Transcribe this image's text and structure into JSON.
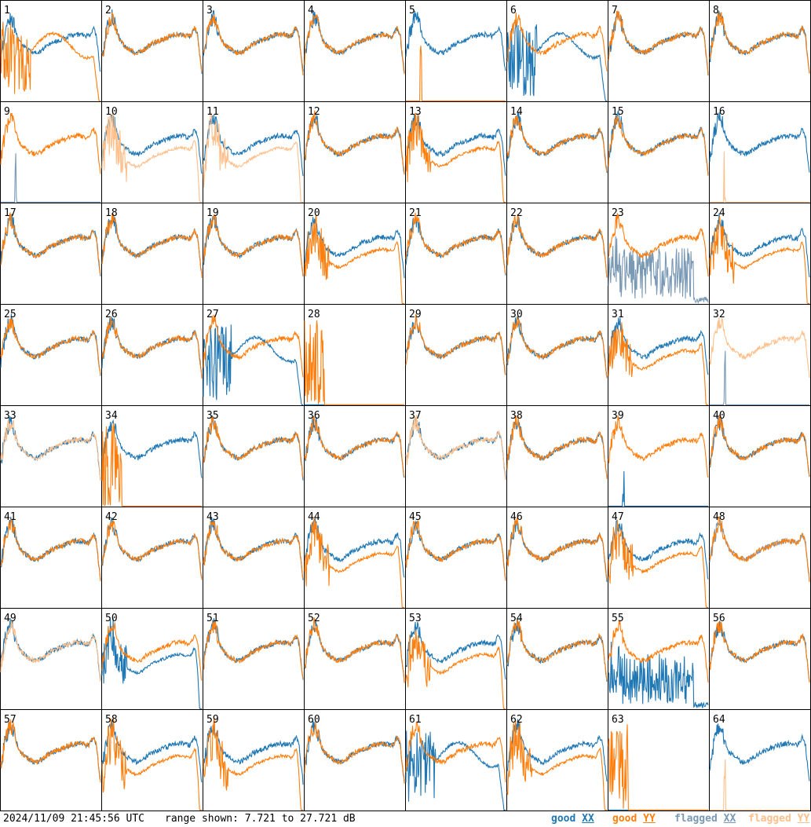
{
  "timestamp": "2024/11/09 21:45:56 UTC",
  "range_text": "range shown: 7.721 to 27.721 dB",
  "legend": [
    {
      "word": "good",
      "pol": "XX",
      "color": "#1f77b4"
    },
    {
      "word": "good",
      "pol": "YY",
      "color": "#ff7f0e"
    },
    {
      "word": "flagged",
      "pol": "XX",
      "color": "#7a99b5"
    },
    {
      "word": "flagged",
      "pol": "YY",
      "color": "#ffbf8a"
    }
  ],
  "colors": {
    "good_xx": "#1f77b4",
    "good_yy": "#ff7f0e",
    "flagged_xx": "#7a99b5",
    "flagged_yy": "#ffbf8a"
  },
  "chart_data": {
    "type": "line",
    "layout": "8x8 small multiples",
    "ylim": [
      7.721,
      27.721
    ],
    "yunit": "dB",
    "series_names": [
      "good XX",
      "good YY",
      "flagged XX",
      "flagged YY"
    ],
    "panels": [
      {
        "id": "1",
        "xx": "nominal",
        "yy": "low_noisy_start",
        "flagged": []
      },
      {
        "id": "2",
        "xx": "nominal",
        "yy": "nominal",
        "flagged": []
      },
      {
        "id": "3",
        "xx": "nominal",
        "yy": "nominal",
        "flagged": []
      },
      {
        "id": "4",
        "xx": "nominal",
        "yy": "nominal",
        "flagged": []
      },
      {
        "id": "5",
        "xx": "nominal",
        "yy": "dead_spike",
        "flagged": []
      },
      {
        "id": "6",
        "xx": "low_noisy_start",
        "yy": "nominal",
        "flagged": []
      },
      {
        "id": "7",
        "xx": "nominal",
        "yy": "nominal",
        "flagged": []
      },
      {
        "id": "8",
        "xx": "nominal",
        "yy": "nominal",
        "flagged": []
      },
      {
        "id": "9",
        "xx": "dead_spike",
        "yy": "nominal",
        "flagged": [
          "xx"
        ]
      },
      {
        "id": "10",
        "xx": "nominal",
        "yy": "low",
        "flagged": [
          "yy"
        ]
      },
      {
        "id": "11",
        "xx": "nominal",
        "yy": "low",
        "flagged": [
          "yy"
        ]
      },
      {
        "id": "12",
        "xx": "nominal",
        "yy": "nominal",
        "flagged": []
      },
      {
        "id": "13",
        "xx": "nominal",
        "yy": "low",
        "flagged": []
      },
      {
        "id": "14",
        "xx": "nominal",
        "yy": "nominal",
        "flagged": []
      },
      {
        "id": "15",
        "xx": "nominal",
        "yy": "nominal",
        "flagged": []
      },
      {
        "id": "16",
        "xx": "nominal",
        "yy": "dead_spike",
        "flagged": [
          "yy"
        ]
      },
      {
        "id": "17",
        "xx": "nominal",
        "yy": "nominal",
        "flagged": []
      },
      {
        "id": "18",
        "xx": "nominal",
        "yy": "nominal",
        "flagged": []
      },
      {
        "id": "19",
        "xx": "nominal",
        "yy": "nominal",
        "flagged": []
      },
      {
        "id": "20",
        "xx": "nominal",
        "yy": "low",
        "flagged": []
      },
      {
        "id": "21",
        "xx": "nominal",
        "yy": "nominal",
        "flagged": []
      },
      {
        "id": "22",
        "xx": "nominal",
        "yy": "nominal",
        "flagged": []
      },
      {
        "id": "23",
        "xx": "garbage",
        "yy": "nominal",
        "flagged": [
          "xx"
        ]
      },
      {
        "id": "24",
        "xx": "nominal",
        "yy": "low",
        "flagged": []
      },
      {
        "id": "25",
        "xx": "nominal",
        "yy": "nominal",
        "flagged": []
      },
      {
        "id": "26",
        "xx": "nominal",
        "yy": "nominal",
        "flagged": []
      },
      {
        "id": "27",
        "xx": "low_noisy_start",
        "yy": "nominal",
        "flagged": []
      },
      {
        "id": "28",
        "xx": "dead",
        "yy": "dead_spiky_start",
        "flagged": []
      },
      {
        "id": "29",
        "xx": "nominal",
        "yy": "nominal",
        "flagged": []
      },
      {
        "id": "30",
        "xx": "nominal",
        "yy": "nominal",
        "flagged": []
      },
      {
        "id": "31",
        "xx": "nominal",
        "yy": "low",
        "flagged": []
      },
      {
        "id": "32",
        "xx": "dead_spike",
        "yy": "nominal",
        "flagged": [
          "xx",
          "yy"
        ]
      },
      {
        "id": "33",
        "xx": "nominal",
        "yy": "nominal",
        "flagged": [
          "yy"
        ]
      },
      {
        "id": "34",
        "xx": "nominal",
        "yy": "dead_spiky_start",
        "flagged": []
      },
      {
        "id": "35",
        "xx": "nominal",
        "yy": "nominal",
        "flagged": []
      },
      {
        "id": "36",
        "xx": "nominal",
        "yy": "nominal",
        "flagged": []
      },
      {
        "id": "37",
        "xx": "nominal",
        "yy": "nominal",
        "flagged": [
          "yy"
        ]
      },
      {
        "id": "38",
        "xx": "nominal",
        "yy": "nominal",
        "flagged": []
      },
      {
        "id": "39",
        "xx": "dead_spike",
        "yy": "nominal",
        "flagged": []
      },
      {
        "id": "40",
        "xx": "nominal",
        "yy": "nominal",
        "flagged": []
      },
      {
        "id": "41",
        "xx": "nominal",
        "yy": "nominal",
        "flagged": []
      },
      {
        "id": "42",
        "xx": "nominal",
        "yy": "nominal",
        "flagged": []
      },
      {
        "id": "43",
        "xx": "nominal",
        "yy": "nominal",
        "flagged": []
      },
      {
        "id": "44",
        "xx": "nominal",
        "yy": "low",
        "flagged": []
      },
      {
        "id": "45",
        "xx": "nominal",
        "yy": "nominal",
        "flagged": []
      },
      {
        "id": "46",
        "xx": "nominal",
        "yy": "nominal",
        "flagged": []
      },
      {
        "id": "47",
        "xx": "nominal",
        "yy": "low",
        "flagged": []
      },
      {
        "id": "48",
        "xx": "nominal",
        "yy": "nominal",
        "flagged": [
          "xx"
        ]
      },
      {
        "id": "49",
        "xx": "nominal",
        "yy": "nominal",
        "flagged": [
          "yy"
        ]
      },
      {
        "id": "50",
        "xx": "low",
        "yy": "nominal",
        "flagged": []
      },
      {
        "id": "51",
        "xx": "nominal",
        "yy": "nominal",
        "flagged": []
      },
      {
        "id": "52",
        "xx": "nominal",
        "yy": "nominal",
        "flagged": []
      },
      {
        "id": "53",
        "xx": "nominal",
        "yy": "low",
        "flagged": []
      },
      {
        "id": "54",
        "xx": "nominal",
        "yy": "nominal",
        "flagged": []
      },
      {
        "id": "55",
        "xx": "garbage",
        "yy": "nominal",
        "flagged": []
      },
      {
        "id": "56",
        "xx": "nominal",
        "yy": "nominal",
        "flagged": []
      },
      {
        "id": "57",
        "xx": "nominal",
        "yy": "nominal",
        "flagged": []
      },
      {
        "id": "58",
        "xx": "nominal",
        "yy": "low",
        "flagged": []
      },
      {
        "id": "59",
        "xx": "nominal",
        "yy": "low",
        "flagged": []
      },
      {
        "id": "60",
        "xx": "nominal",
        "yy": "nominal",
        "flagged": []
      },
      {
        "id": "61",
        "xx": "low_noisy_start",
        "yy": "nominal",
        "flagged": []
      },
      {
        "id": "62",
        "xx": "nominal",
        "yy": "low",
        "flagged": []
      },
      {
        "id": "63",
        "xx": "dead",
        "yy": "dead_spiky_start",
        "flagged": []
      },
      {
        "id": "64",
        "xx": "nominal",
        "yy": "dead_spike",
        "flagged": [
          "yy"
        ]
      }
    ]
  }
}
